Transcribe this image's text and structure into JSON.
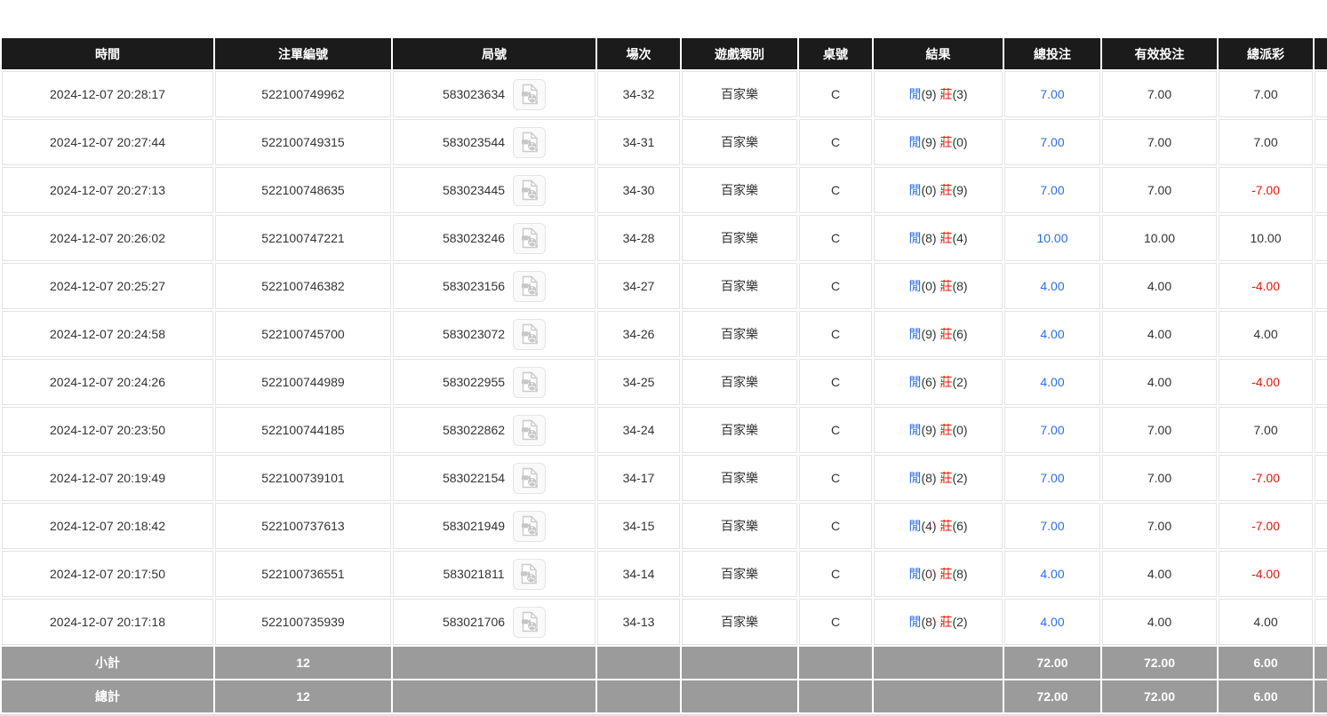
{
  "colors": {
    "header_bg": "#1b1b1b",
    "summary_bg": "#9b9b9b",
    "cell_border": "#e3e3e3",
    "link_blue": "#2e6de6",
    "negative_red": "#ee150c",
    "body_text": "#333333"
  },
  "table": {
    "columns": [
      "時間",
      "注單編號",
      "局號",
      "場次",
      "遊戲類別",
      "桌號",
      "結果",
      "總投注",
      "有效投注",
      "總派彩"
    ],
    "truncated_column_label": "",
    "result_labels": {
      "player": "閒",
      "banker": "莊"
    },
    "icons": {
      "round_video": "video-record-icon"
    },
    "rows": [
      {
        "time": "2024-12-07 20:28:17",
        "bet_no": "522100749962",
        "round_no": "583023634",
        "session": "34-32",
        "game_type": "百家樂",
        "table_no": "C",
        "result": {
          "player": "9",
          "banker": "3"
        },
        "total_bet": "7.00",
        "valid_bet": "7.00",
        "payout": "7.00",
        "payout_negative": false
      },
      {
        "time": "2024-12-07 20:27:44",
        "bet_no": "522100749315",
        "round_no": "583023544",
        "session": "34-31",
        "game_type": "百家樂",
        "table_no": "C",
        "result": {
          "player": "9",
          "banker": "0"
        },
        "total_bet": "7.00",
        "valid_bet": "7.00",
        "payout": "7.00",
        "payout_negative": false
      },
      {
        "time": "2024-12-07 20:27:13",
        "bet_no": "522100748635",
        "round_no": "583023445",
        "session": "34-30",
        "game_type": "百家樂",
        "table_no": "C",
        "result": {
          "player": "0",
          "banker": "9"
        },
        "total_bet": "7.00",
        "valid_bet": "7.00",
        "payout": "-7.00",
        "payout_negative": true
      },
      {
        "time": "2024-12-07 20:26:02",
        "bet_no": "522100747221",
        "round_no": "583023246",
        "session": "34-28",
        "game_type": "百家樂",
        "table_no": "C",
        "result": {
          "player": "8",
          "banker": "4"
        },
        "total_bet": "10.00",
        "valid_bet": "10.00",
        "payout": "10.00",
        "payout_negative": false
      },
      {
        "time": "2024-12-07 20:25:27",
        "bet_no": "522100746382",
        "round_no": "583023156",
        "session": "34-27",
        "game_type": "百家樂",
        "table_no": "C",
        "result": {
          "player": "0",
          "banker": "8"
        },
        "total_bet": "4.00",
        "valid_bet": "4.00",
        "payout": "-4.00",
        "payout_negative": true
      },
      {
        "time": "2024-12-07 20:24:58",
        "bet_no": "522100745700",
        "round_no": "583023072",
        "session": "34-26",
        "game_type": "百家樂",
        "table_no": "C",
        "result": {
          "player": "9",
          "banker": "6"
        },
        "total_bet": "4.00",
        "valid_bet": "4.00",
        "payout": "4.00",
        "payout_negative": false
      },
      {
        "time": "2024-12-07 20:24:26",
        "bet_no": "522100744989",
        "round_no": "583022955",
        "session": "34-25",
        "game_type": "百家樂",
        "table_no": "C",
        "result": {
          "player": "6",
          "banker": "2"
        },
        "total_bet": "4.00",
        "valid_bet": "4.00",
        "payout": "-4.00",
        "payout_negative": true
      },
      {
        "time": "2024-12-07 20:23:50",
        "bet_no": "522100744185",
        "round_no": "583022862",
        "session": "34-24",
        "game_type": "百家樂",
        "table_no": "C",
        "result": {
          "player": "9",
          "banker": "0"
        },
        "total_bet": "7.00",
        "valid_bet": "7.00",
        "payout": "7.00",
        "payout_negative": false
      },
      {
        "time": "2024-12-07 20:19:49",
        "bet_no": "522100739101",
        "round_no": "583022154",
        "session": "34-17",
        "game_type": "百家樂",
        "table_no": "C",
        "result": {
          "player": "8",
          "banker": "2"
        },
        "total_bet": "7.00",
        "valid_bet": "7.00",
        "payout": "-7.00",
        "payout_negative": true
      },
      {
        "time": "2024-12-07 20:18:42",
        "bet_no": "522100737613",
        "round_no": "583021949",
        "session": "34-15",
        "game_type": "百家樂",
        "table_no": "C",
        "result": {
          "player": "4",
          "banker": "6"
        },
        "total_bet": "7.00",
        "valid_bet": "7.00",
        "payout": "-7.00",
        "payout_negative": true
      },
      {
        "time": "2024-12-07 20:17:50",
        "bet_no": "522100736551",
        "round_no": "583021811",
        "session": "34-14",
        "game_type": "百家樂",
        "table_no": "C",
        "result": {
          "player": "0",
          "banker": "8"
        },
        "total_bet": "4.00",
        "valid_bet": "4.00",
        "payout": "-4.00",
        "payout_negative": true
      },
      {
        "time": "2024-12-07 20:17:18",
        "bet_no": "522100735939",
        "round_no": "583021706",
        "session": "34-13",
        "game_type": "百家樂",
        "table_no": "C",
        "result": {
          "player": "8",
          "banker": "2"
        },
        "total_bet": "4.00",
        "valid_bet": "4.00",
        "payout": "4.00",
        "payout_negative": false
      }
    ],
    "summary_rows": [
      {
        "label": "小計",
        "count": "12",
        "total_bet": "72.00",
        "valid_bet": "72.00",
        "payout": "6.00"
      },
      {
        "label": "總計",
        "count": "12",
        "total_bet": "72.00",
        "valid_bet": "72.00",
        "payout": "6.00"
      }
    ]
  }
}
